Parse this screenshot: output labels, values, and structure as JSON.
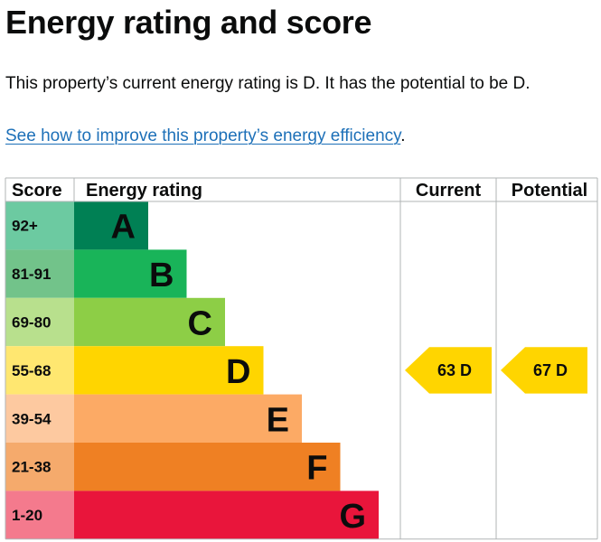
{
  "title": "Energy rating and score",
  "summary": "This property’s current energy rating is D. It has the potential to be D.",
  "link": {
    "text": "See how to improve this property’s energy efficiency",
    "trailing": "."
  },
  "chart_data": {
    "type": "bar",
    "headers": {
      "score": "Score",
      "rating": "Energy rating",
      "current": "Current",
      "potential": "Potential"
    },
    "bands": [
      {
        "range": "92+",
        "letter": "A",
        "fill": "#008054",
        "score_fill": "#6ccaa1"
      },
      {
        "range": "81-91",
        "letter": "B",
        "fill": "#19b459",
        "score_fill": "#72c38a"
      },
      {
        "range": "69-80",
        "letter": "C",
        "fill": "#8dce46",
        "score_fill": "#b8e08d"
      },
      {
        "range": "55-68",
        "letter": "D",
        "fill": "#ffd500",
        "score_fill": "#ffe770"
      },
      {
        "range": "39-54",
        "letter": "E",
        "fill": "#fcaa65",
        "score_fill": "#fdc9a0"
      },
      {
        "range": "21-38",
        "letter": "F",
        "fill": "#ef8023",
        "score_fill": "#f5aa6c"
      },
      {
        "range": "1-20",
        "letter": "G",
        "fill": "#e9153b",
        "score_fill": "#f47a8d"
      }
    ],
    "current": {
      "score": 63,
      "letter": "D",
      "label": "63  D",
      "band_index": 3
    },
    "potential": {
      "score": 67,
      "letter": "D",
      "label": "67  D",
      "band_index": 3
    },
    "indicator_fill": "#ffd500",
    "grid_color": "#b1b4b6"
  }
}
